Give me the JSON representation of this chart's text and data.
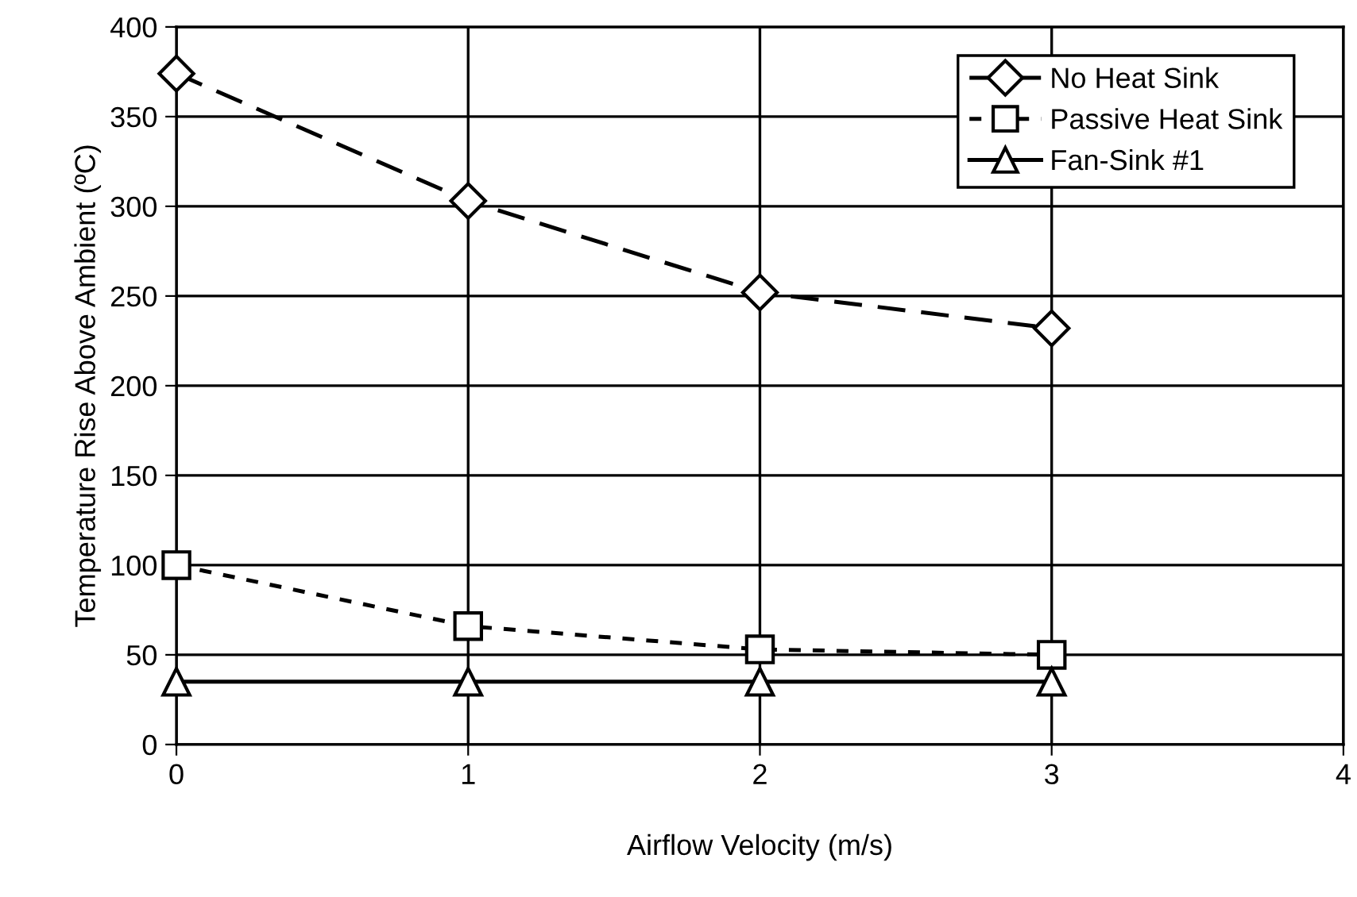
{
  "chart_data": {
    "type": "line",
    "xlabel": "Airflow Velocity (m/s)",
    "ylabel": "Temperature Rise Above Ambient (ºC)",
    "x": [
      0,
      1,
      2,
      3
    ],
    "series": [
      {
        "name": "No Heat Sink",
        "color": "#000000",
        "values": [
          374,
          303,
          252,
          232
        ],
        "marker": "diamond",
        "line_style": "dashed"
      },
      {
        "name": "Passive Heat Sink",
        "color": "#000000",
        "values": [
          100,
          66,
          53,
          50
        ],
        "marker": "square",
        "line_style": "dotted"
      },
      {
        "name": "Fan-Sink #1",
        "color": "#000000",
        "values": [
          35,
          35,
          35,
          35
        ],
        "marker": "triangle",
        "line_style": "solid"
      }
    ],
    "xlim": [
      0,
      4
    ],
    "xticks": [
      0,
      1,
      2,
      3,
      4
    ],
    "ylim": [
      0,
      400
    ],
    "yticks": [
      0,
      50,
      100,
      150,
      200,
      250,
      300,
      350,
      400
    ],
    "grid": true,
    "legend": "top right"
  }
}
